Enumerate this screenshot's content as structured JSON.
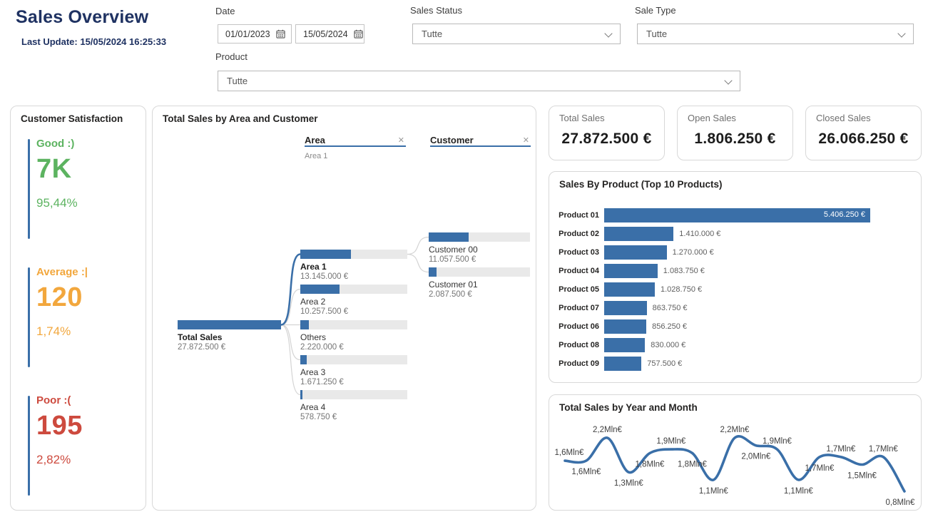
{
  "header": {
    "title": "Sales Overview",
    "last_update": "Last Update: 15/05/2024 16:25:33"
  },
  "filters": {
    "date": {
      "label": "Date",
      "start": "01/01/2023",
      "end": "15/05/2024"
    },
    "sales_status": {
      "label": "Sales Status",
      "value": "Tutte"
    },
    "sale_type": {
      "label": "Sale Type",
      "value": "Tutte"
    },
    "product": {
      "label": "Product",
      "value": "Tutte"
    }
  },
  "satisfaction": {
    "title": "Customer Satisfaction",
    "accent_color": "#3A6FA8",
    "sections": [
      {
        "label": "Good :)",
        "value": "7K",
        "percent": "95,44%",
        "color": "#5CB360"
      },
      {
        "label": "Average :|",
        "value": "120",
        "percent": "1,74%",
        "color": "#F2A73D"
      },
      {
        "label": "Poor :(",
        "value": "195",
        "percent": "2,82%",
        "color": "#CD4A3E"
      }
    ]
  },
  "kpi_cards": [
    {
      "label": "Total Sales",
      "value": "27.872.500 €"
    },
    {
      "label": "Open Sales",
      "value": "1.806.250 €"
    },
    {
      "label": "Closed Sales",
      "value": "26.066.250 €"
    }
  ],
  "tree": {
    "title": "Total Sales by Area and Customer",
    "level_headers": [
      {
        "label": "Area"
      },
      {
        "label": "Customer"
      }
    ],
    "close_glyph": "✕",
    "breadcrumb": "Area 1",
    "total_amount": 27872500,
    "bar_color": "#3A6FA8",
    "nodes": [
      {
        "name": "Total Sales",
        "col": 0,
        "amount": 27872500,
        "value": "27.872.500 €",
        "bold": true
      },
      {
        "name": "Area 1",
        "col": 1,
        "amount": 13145000,
        "value": "13.145.000 €",
        "bold": true,
        "selected": true
      },
      {
        "name": "Area 2",
        "col": 1,
        "amount": 10257500,
        "value": "10.257.500 €"
      },
      {
        "name": "Others",
        "col": 1,
        "amount": 2220000,
        "value": "2.220.000 €"
      },
      {
        "name": "Area 3",
        "col": 1,
        "amount": 1671250,
        "value": "1.671.250 €"
      },
      {
        "name": "Area 4",
        "col": 1,
        "amount": 578750,
        "value": "578.750 €"
      },
      {
        "name": "Customer 00",
        "col": 2,
        "amount": 11057500,
        "value": "11.057.500 €"
      },
      {
        "name": "Customer 01",
        "col": 2,
        "amount": 2087500,
        "value": "2.087.500 €"
      }
    ]
  },
  "chart_data": [
    {
      "type": "bar",
      "title": "Sales By Product (Top 10 Products)",
      "orientation": "horizontal",
      "categories": [
        "Product 01",
        "Product 02",
        "Product 03",
        "Product 04",
        "Product 05",
        "Product 07",
        "Product 06",
        "Product 08",
        "Product 09"
      ],
      "values": [
        5406250,
        1410000,
        1270000,
        1083750,
        1028750,
        863750,
        856250,
        830000,
        757500
      ],
      "value_labels": [
        "5.406.250 €",
        "1.410.000 €",
        "1.270.000 €",
        "1.083.750 €",
        "1.028.750 €",
        "863.750 €",
        "856.250 €",
        "830.000 €",
        "757.500 €"
      ],
      "bar_color": "#3A6FA8",
      "axis_visible": false
    },
    {
      "type": "line",
      "title": "Total Sales by Year and Month",
      "unit": "Mln€",
      "values": [
        1.6,
        1.6,
        2.2,
        1.3,
        1.8,
        1.9,
        1.8,
        1.1,
        2.2,
        2.0,
        1.9,
        1.1,
        1.7,
        1.7,
        1.5,
        1.7,
        0.8
      ],
      "point_labels": [
        "1,6Mln€",
        "1,6Mln€",
        "2,2Mln€",
        "1,3Mln€",
        "1,8Mln€",
        "1,9Mln€",
        "1,8Mln€",
        "1,1Mln€",
        "2,2Mln€",
        "2,0Mln€",
        "1,9Mln€",
        "1,1Mln€",
        "1,7Mln€",
        "1,7Mln€",
        "1,5Mln€",
        "1,7Mln€",
        "0,8Mln€"
      ],
      "label_sides": [
        "above",
        "below",
        "above",
        "below",
        "below",
        "above",
        "below",
        "below",
        "above",
        "below",
        "above",
        "below",
        "below",
        "above",
        "below",
        "above",
        "below"
      ],
      "line_color": "#3A6FA8",
      "ylim": [
        0.8,
        2.2
      ],
      "axis_visible": false,
      "grid": false
    }
  ]
}
